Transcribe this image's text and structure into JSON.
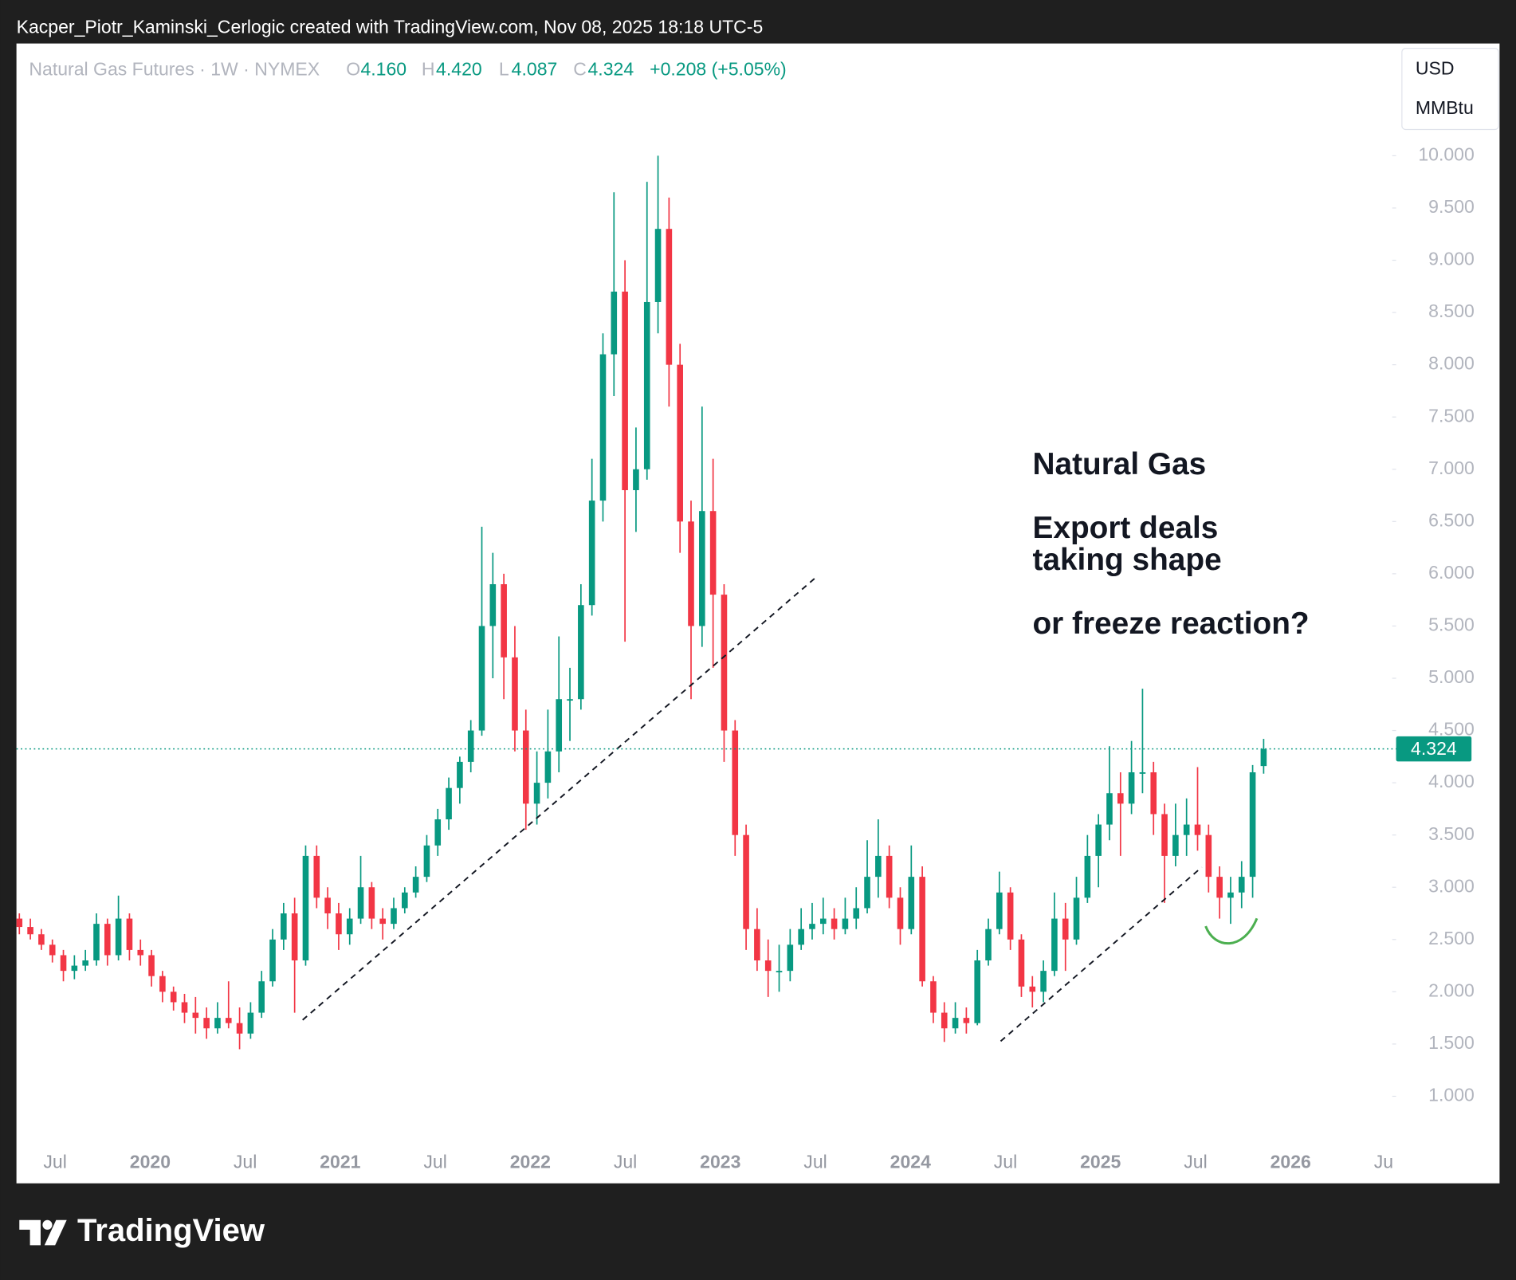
{
  "header": {
    "credit": "Kacper_Piotr_Kaminski_Cerlogic created with TradingView.com, Nov 08, 2025 18:18 UTC-5"
  },
  "footer": {
    "brand": "TradingView"
  },
  "chart_data": {
    "type": "candlestick",
    "symbol": "Natural Gas Futures · 1W · NYMEX",
    "ohlc_legend": {
      "o_key": "O",
      "open": "4.160",
      "h_key": "H",
      "high": "4.420",
      "l_key": "L",
      "low": "4.087",
      "c_key": "C",
      "close": "4.324",
      "change": "+0.208 (+5.05%)"
    },
    "currency": "USD",
    "unit": "MMBtu",
    "annotations": [
      "Natural Gas",
      "Export deals",
      "taking shape",
      "or freeze reaction?"
    ],
    "x_axis_labels": [
      "Jul",
      "2020",
      "Jul",
      "2021",
      "Jul",
      "2022",
      "Jul",
      "2023",
      "Jul",
      "2024",
      "Jul",
      "2025",
      "Jul",
      "2026",
      "Jul"
    ],
    "up_color": "#089981",
    "down_color": "#f23645",
    "ylim": [
      0.5,
      11
    ],
    "yticks": [
      {
        "value": 1,
        "label": "1.000"
      },
      {
        "value": 1.5,
        "label": "1.500"
      },
      {
        "value": 2,
        "label": "2.000"
      },
      {
        "value": 2.5,
        "label": "2.500"
      },
      {
        "value": 3,
        "label": "3.000"
      },
      {
        "value": 3.5,
        "label": "3.500"
      },
      {
        "value": 4,
        "label": "4.000"
      },
      {
        "value": 4.5,
        "label": "4.500"
      },
      {
        "value": 5,
        "label": "5.000"
      },
      {
        "value": 5.5,
        "label": "5.500"
      },
      {
        "value": 6,
        "label": "6.000"
      },
      {
        "value": 6.5,
        "label": "6.500"
      },
      {
        "value": 7,
        "label": "7.000"
      },
      {
        "value": 7.5,
        "label": "7.500"
      },
      {
        "value": 8,
        "label": "8.000"
      },
      {
        "value": 8.5,
        "label": "8.500"
      },
      {
        "value": 9,
        "label": "9.000"
      },
      {
        "value": 9.5,
        "label": "9.500"
      },
      {
        "value": 10,
        "label": "10.000"
      }
    ],
    "last_price": {
      "value": 4.324,
      "label": "4.324"
    },
    "candles": [
      [
        2.7,
        2.75,
        2.55,
        2.62
      ],
      [
        2.62,
        2.7,
        2.5,
        2.55
      ],
      [
        2.55,
        2.6,
        2.4,
        2.45
      ],
      [
        2.45,
        2.5,
        2.28,
        2.35
      ],
      [
        2.35,
        2.4,
        2.1,
        2.2
      ],
      [
        2.2,
        2.35,
        2.12,
        2.25
      ],
      [
        2.25,
        2.4,
        2.2,
        2.3
      ],
      [
        2.3,
        2.75,
        2.25,
        2.65
      ],
      [
        2.65,
        2.7,
        2.25,
        2.35
      ],
      [
        2.35,
        2.92,
        2.3,
        2.7
      ],
      [
        2.7,
        2.75,
        2.3,
        2.4
      ],
      [
        2.4,
        2.5,
        2.25,
        2.35
      ],
      [
        2.35,
        2.4,
        2.05,
        2.15
      ],
      [
        2.15,
        2.2,
        1.9,
        2.0
      ],
      [
        2.0,
        2.05,
        1.82,
        1.9
      ],
      [
        1.9,
        1.98,
        1.7,
        1.8
      ],
      [
        1.8,
        1.95,
        1.6,
        1.75
      ],
      [
        1.75,
        1.85,
        1.55,
        1.65
      ],
      [
        1.65,
        1.9,
        1.6,
        1.75
      ],
      [
        1.75,
        2.1,
        1.65,
        1.7
      ],
      [
        1.7,
        1.85,
        1.45,
        1.6
      ],
      [
        1.6,
        1.9,
        1.55,
        1.8
      ],
      [
        1.8,
        2.2,
        1.75,
        2.1
      ],
      [
        2.1,
        2.6,
        2.05,
        2.5
      ],
      [
        2.5,
        2.85,
        2.4,
        2.75
      ],
      [
        2.75,
        2.9,
        1.8,
        2.3
      ],
      [
        2.3,
        3.4,
        2.25,
        3.3
      ],
      [
        3.3,
        3.4,
        2.8,
        2.9
      ],
      [
        2.9,
        3.0,
        2.6,
        2.75
      ],
      [
        2.75,
        2.85,
        2.4,
        2.55
      ],
      [
        2.55,
        2.8,
        2.45,
        2.7
      ],
      [
        2.7,
        3.3,
        2.65,
        3.0
      ],
      [
        3.0,
        3.05,
        2.6,
        2.7
      ],
      [
        2.7,
        2.8,
        2.5,
        2.65
      ],
      [
        2.65,
        2.9,
        2.6,
        2.8
      ],
      [
        2.8,
        3.0,
        2.75,
        2.95
      ],
      [
        2.95,
        3.2,
        2.9,
        3.1
      ],
      [
        3.1,
        3.5,
        3.05,
        3.4
      ],
      [
        3.4,
        3.75,
        3.3,
        3.65
      ],
      [
        3.65,
        4.05,
        3.55,
        3.95
      ],
      [
        3.95,
        4.25,
        3.8,
        4.2
      ],
      [
        4.2,
        4.6,
        4.1,
        4.5
      ],
      [
        4.5,
        6.45,
        4.45,
        5.5
      ],
      [
        5.5,
        6.2,
        5.0,
        5.9
      ],
      [
        5.9,
        6.0,
        4.8,
        5.2
      ],
      [
        5.2,
        5.5,
        4.3,
        4.5
      ],
      [
        4.5,
        4.7,
        3.55,
        3.8
      ],
      [
        3.8,
        4.3,
        3.6,
        4.0
      ],
      [
        4.0,
        4.7,
        3.85,
        4.3
      ],
      [
        4.3,
        5.4,
        4.1,
        4.8
      ],
      [
        4.8,
        5.1,
        4.4,
        4.8
      ],
      [
        4.8,
        5.9,
        4.7,
        5.7
      ],
      [
        5.7,
        7.1,
        5.6,
        6.7
      ],
      [
        6.7,
        8.3,
        6.5,
        8.1
      ],
      [
        8.1,
        9.65,
        7.7,
        8.7
      ],
      [
        8.7,
        9.0,
        5.35,
        6.8
      ],
      [
        6.8,
        7.4,
        6.4,
        7.0
      ],
      [
        7.0,
        9.75,
        6.9,
        8.6
      ],
      [
        8.6,
        10.0,
        8.3,
        9.3
      ],
      [
        9.3,
        9.6,
        7.6,
        8.0
      ],
      [
        8.0,
        8.2,
        6.2,
        6.5
      ],
      [
        6.5,
        6.7,
        4.8,
        5.5
      ],
      [
        5.5,
        7.6,
        5.3,
        6.6
      ],
      [
        6.6,
        7.1,
        5.1,
        5.8
      ],
      [
        5.8,
        5.9,
        4.2,
        4.5
      ],
      [
        4.5,
        4.6,
        3.3,
        3.5
      ],
      [
        3.5,
        3.6,
        2.4,
        2.6
      ],
      [
        2.6,
        2.8,
        2.2,
        2.3
      ],
      [
        2.3,
        2.5,
        1.95,
        2.2
      ],
      [
        2.2,
        2.45,
        2.0,
        2.2
      ],
      [
        2.2,
        2.6,
        2.1,
        2.45
      ],
      [
        2.45,
        2.8,
        2.4,
        2.6
      ],
      [
        2.6,
        2.85,
        2.5,
        2.65
      ],
      [
        2.65,
        2.9,
        2.55,
        2.7
      ],
      [
        2.7,
        2.8,
        2.5,
        2.6
      ],
      [
        2.6,
        2.9,
        2.55,
        2.7
      ],
      [
        2.7,
        3.0,
        2.6,
        2.8
      ],
      [
        2.8,
        3.45,
        2.75,
        3.1
      ],
      [
        3.1,
        3.65,
        2.9,
        3.3
      ],
      [
        3.3,
        3.4,
        2.8,
        2.9
      ],
      [
        2.9,
        3.0,
        2.45,
        2.6
      ],
      [
        2.6,
        3.4,
        2.55,
        3.1
      ],
      [
        3.1,
        3.2,
        2.05,
        2.1
      ],
      [
        2.1,
        2.15,
        1.7,
        1.8
      ],
      [
        1.8,
        1.9,
        1.52,
        1.65
      ],
      [
        1.65,
        1.9,
        1.6,
        1.75
      ],
      [
        1.75,
        1.85,
        1.6,
        1.7
      ],
      [
        1.7,
        2.4,
        1.68,
        2.3
      ],
      [
        2.3,
        2.7,
        2.25,
        2.6
      ],
      [
        2.6,
        3.15,
        2.55,
        2.95
      ],
      [
        2.95,
        3.0,
        2.4,
        2.5
      ],
      [
        2.5,
        2.55,
        1.95,
        2.05
      ],
      [
        2.05,
        2.15,
        1.85,
        2.0
      ],
      [
        2.0,
        2.3,
        1.9,
        2.2
      ],
      [
        2.2,
        2.95,
        2.15,
        2.7
      ],
      [
        2.7,
        2.85,
        2.2,
        2.5
      ],
      [
        2.5,
        3.1,
        2.45,
        2.9
      ],
      [
        2.9,
        3.5,
        2.85,
        3.3
      ],
      [
        3.3,
        3.7,
        3.0,
        3.6
      ],
      [
        3.6,
        4.35,
        3.45,
        3.9
      ],
      [
        3.9,
        4.1,
        3.3,
        3.8
      ],
      [
        3.8,
        4.4,
        3.7,
        4.1
      ],
      [
        4.1,
        4.9,
        3.9,
        4.1
      ],
      [
        4.1,
        4.2,
        3.5,
        3.7
      ],
      [
        3.7,
        3.8,
        2.85,
        3.3
      ],
      [
        3.3,
        3.8,
        3.2,
        3.5
      ],
      [
        3.5,
        3.85,
        3.3,
        3.6
      ],
      [
        3.6,
        4.15,
        3.35,
        3.5
      ],
      [
        3.5,
        3.6,
        2.95,
        3.1
      ],
      [
        3.1,
        3.2,
        2.7,
        2.9
      ],
      [
        2.9,
        3.1,
        2.65,
        2.95
      ],
      [
        2.95,
        3.25,
        2.8,
        3.1
      ],
      [
        3.1,
        4.17,
        2.9,
        4.1
      ],
      [
        4.16,
        4.42,
        4.087,
        4.324
      ]
    ]
  }
}
